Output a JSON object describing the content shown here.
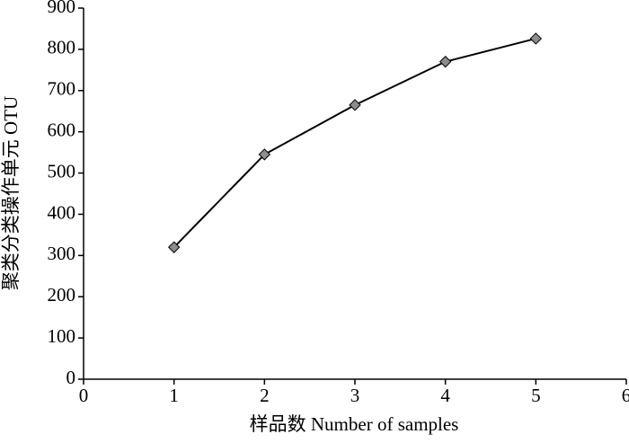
{
  "chart_data": {
    "type": "line",
    "x_label": "样品数 Number of samples",
    "y_label": "聚类分类操作单元 OTU",
    "x": [
      1,
      2,
      3,
      4,
      5
    ],
    "series": [
      {
        "color": "#000000",
        "marker_color": "#8c8c8c",
        "values": [
          320,
          545,
          665,
          770,
          826
        ]
      }
    ],
    "xlim": [
      0,
      6
    ],
    "xticks": [
      0,
      1,
      2,
      3,
      4,
      5,
      6
    ],
    "ylim": [
      0,
      900
    ],
    "yticks": [
      0,
      100,
      200,
      300,
      400,
      500,
      600,
      700,
      800,
      900
    ],
    "grid": false
  }
}
